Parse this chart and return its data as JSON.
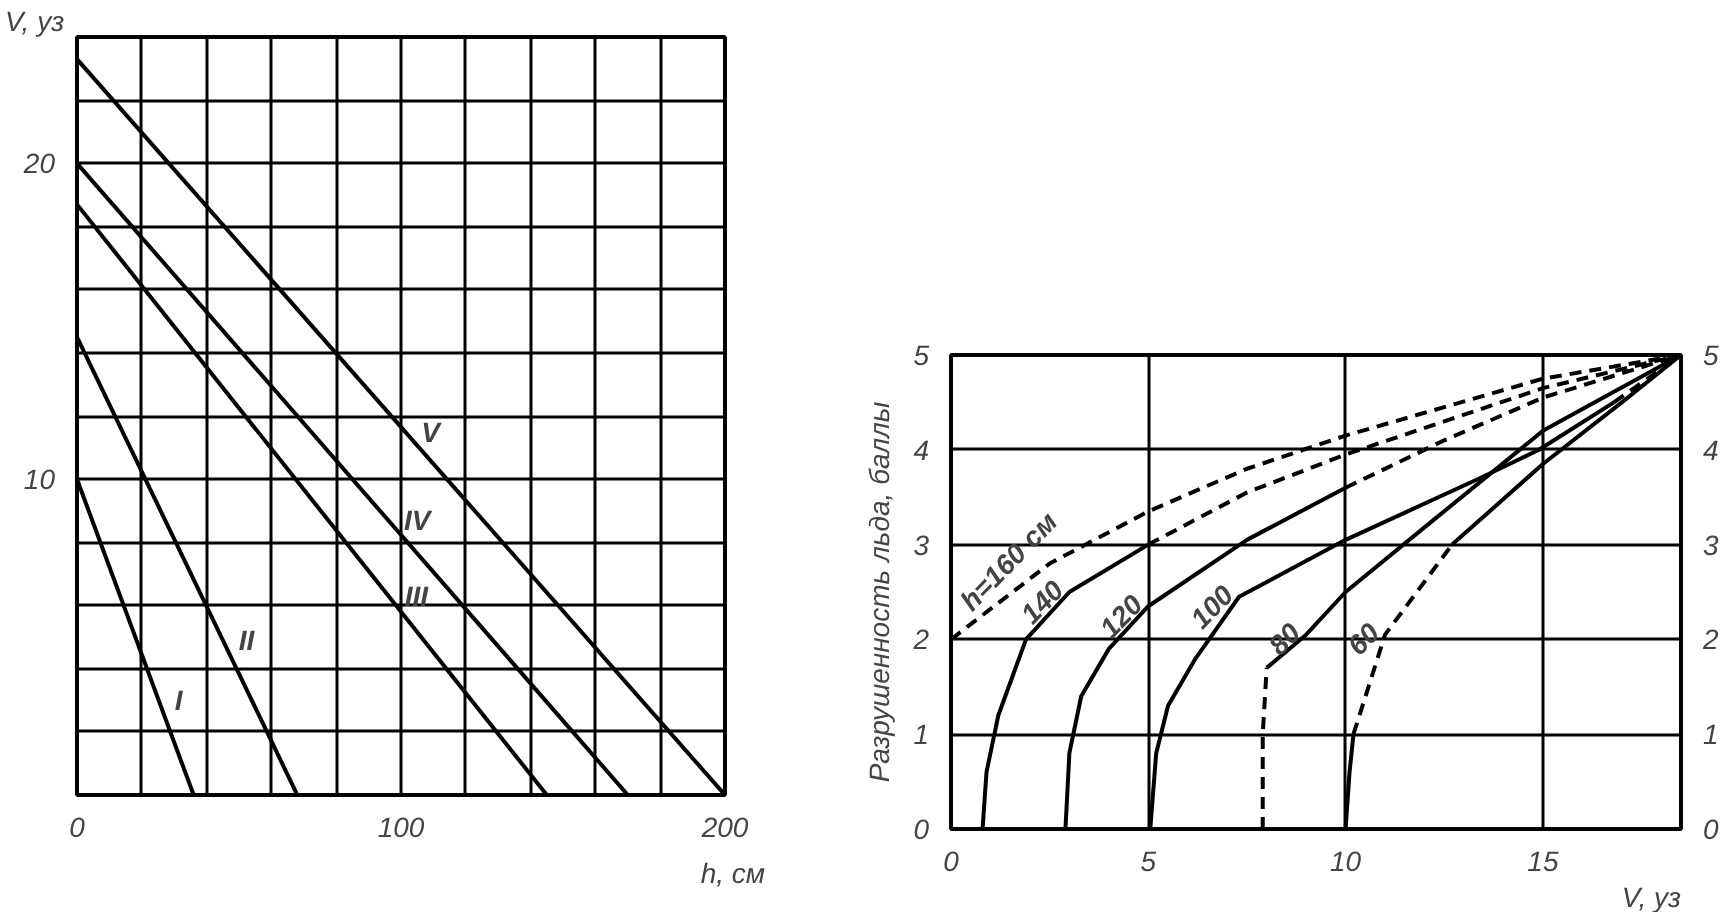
{
  "chart_data": [
    {
      "type": "line",
      "xlabel": "h, см",
      "ylabel": "V, уз",
      "xlim": [
        0,
        200
      ],
      "ylim": [
        0,
        24
      ],
      "xticks": [
        0,
        {
          "value": 20,
          "label": null
        },
        {
          "value": 40,
          "label": null
        },
        {
          "value": 60,
          "label": null
        },
        {
          "value": 80,
          "label": null
        },
        100,
        {
          "value": 120,
          "label": null
        },
        {
          "value": 140,
          "label": null
        },
        {
          "value": 160,
          "label": null
        },
        {
          "value": 180,
          "label": null
        },
        200
      ],
      "yticks": [
        {
          "value": 0,
          "label": null
        },
        {
          "value": 2,
          "label": null
        },
        {
          "value": 4,
          "label": null
        },
        {
          "value": 6,
          "label": null
        },
        {
          "value": 8,
          "label": null
        },
        10,
        {
          "value": 12,
          "label": null
        },
        {
          "value": 14,
          "label": null
        },
        {
          "value": 16,
          "label": null
        },
        {
          "value": 18,
          "label": null
        },
        20,
        {
          "value": 22,
          "label": null
        },
        {
          "value": 24,
          "label": null
        }
      ],
      "grid": true,
      "line_style": "solid",
      "marker": "none",
      "series": [
        {
          "color": "#000000",
          "x": [
            0,
            36
          ],
          "values": [
            10,
            0
          ]
        },
        {
          "color": "#000000",
          "x": [
            0,
            68
          ],
          "values": [
            14.5,
            0
          ]
        },
        {
          "color": "#000000",
          "x": [
            0,
            145
          ],
          "values": [
            18.7,
            0
          ]
        },
        {
          "color": "#000000",
          "x": [
            0,
            170
          ],
          "values": [
            20,
            0
          ]
        },
        {
          "color": "#000000",
          "x": [
            0,
            200
          ],
          "values": [
            23.3,
            0
          ]
        }
      ],
      "annotations": [
        {
          "text": "I",
          "x": 25.2,
          "y": 3
        },
        {
          "text": "II",
          "x": 45,
          "y": 4.9
        },
        {
          "text": "III",
          "x": 96.2,
          "y": 6.3
        },
        {
          "text": "IV",
          "x": 96,
          "y": 8.7
        },
        {
          "text": "V",
          "x": 101.3,
          "y": 11.5
        }
      ]
    },
    {
      "type": "line",
      "xlabel": "V, уз",
      "ylabel": "Разрушенность льда, баллы",
      "xlim": [
        0,
        18.5
      ],
      "ylim": [
        0,
        5
      ],
      "y2lim": [
        0,
        5
      ],
      "xticks": [
        0,
        5,
        10,
        15
      ],
      "yticks": [
        0,
        1,
        2,
        3,
        4,
        5
      ],
      "y2ticks": [
        0,
        1,
        2,
        3,
        4,
        5
      ],
      "grid": true,
      "marker": "none",
      "series": [
        {
          "color": "#000000",
          "line_style": "dashed",
          "x": [
            0,
            2.5,
            5,
            7.5,
            10,
            12.5,
            15,
            18.5
          ],
          "values": [
            2,
            2.8,
            3.35,
            3.8,
            4.15,
            4.45,
            4.75,
            5
          ]
        },
        {
          "color": "#000000",
          "line_style": "solid",
          "x": [
            0.8,
            0.9,
            1.2,
            1.9,
            3,
            5
          ],
          "values": [
            0,
            0.6,
            1.2,
            2,
            2.5,
            3
          ]
        },
        {
          "color": "#000000",
          "line_style": "dashed",
          "x": [
            5,
            7.5,
            10,
            12.5,
            15,
            18.5
          ],
          "values": [
            3,
            3.55,
            3.95,
            4.3,
            4.65,
            5
          ]
        },
        {
          "color": "#000000",
          "line_style": "solid",
          "x": [
            2.9,
            3,
            3.3,
            4,
            5,
            7.5,
            10
          ],
          "values": [
            0,
            0.8,
            1.4,
            1.9,
            2.35,
            3.05,
            3.6
          ]
        },
        {
          "color": "#000000",
          "line_style": "dashed",
          "x": [
            10,
            12.5,
            15,
            18.5
          ],
          "values": [
            3.6,
            4.1,
            4.55,
            5
          ]
        },
        {
          "color": "#000000",
          "line_style": "solid",
          "x": [
            5.05,
            5.2,
            5.5,
            6.2,
            7.3,
            10,
            13.4,
            14.9,
            16.8
          ],
          "values": [
            0,
            0.8,
            1.3,
            1.8,
            2.45,
            3.05,
            3.7,
            4,
            4.5
          ]
        },
        {
          "color": "#000000",
          "line_style": "dashed",
          "x": [
            16.8,
            18.5
          ],
          "values": [
            4.5,
            5
          ]
        },
        {
          "color": "#000000",
          "line_style": "dashed",
          "x": [
            7.9,
            7.9,
            8
          ],
          "values": [
            0,
            1,
            1.7
          ]
        },
        {
          "color": "#000000",
          "line_style": "solid",
          "x": [
            8,
            9,
            10,
            12.2,
            15,
            18.5
          ],
          "values": [
            1.7,
            2.05,
            2.5,
            3.25,
            4.2,
            5
          ]
        },
        {
          "color": "#000000",
          "line_style": "solid",
          "x": [
            10,
            10.1,
            10.2
          ],
          "values": [
            0,
            0.6,
            1
          ]
        },
        {
          "color": "#000000",
          "line_style": "dashed",
          "x": [
            10.2,
            11,
            12.7
          ],
          "values": [
            1,
            2.05,
            3
          ]
        },
        {
          "color": "#000000",
          "line_style": "solid",
          "x": [
            12.7,
            15,
            17,
            18.5
          ],
          "values": [
            3,
            3.85,
            4.5,
            5
          ]
        }
      ],
      "annotations": [
        {
          "text": "h=160 см",
          "x": 0.75,
          "y": 2.24
        },
        {
          "text": "140",
          "x": 3,
          "y": 2.5
        },
        {
          "text": "120",
          "x": 5,
          "y": 2.35
        },
        {
          "text": "100",
          "x": 7.3,
          "y": 2.45
        },
        {
          "text": "80",
          "x": 9,
          "y": 2.05
        },
        {
          "text": "60",
          "x": 11,
          "y": 2.05
        }
      ]
    }
  ]
}
